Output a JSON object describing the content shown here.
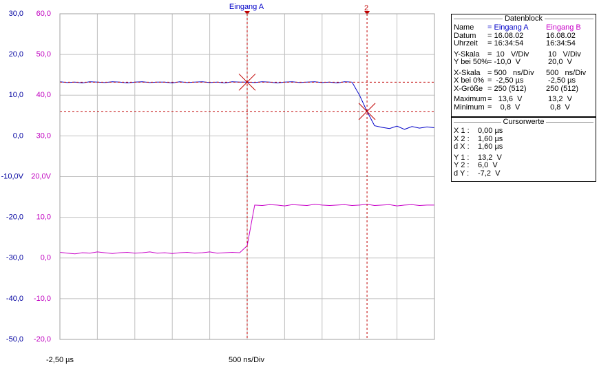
{
  "chart_data": {
    "type": "line",
    "title": "Eingang A",
    "cursor2_label": "2",
    "x_start_label": "-2,50 µs",
    "x_scale_label": "500 ns/Div",
    "xlim": [
      -2.5,
      2.5
    ],
    "xticks": [
      -2.5,
      -2,
      -1.5,
      -1,
      -0.5,
      0,
      0.5,
      1,
      1.5,
      2,
      2.5
    ],
    "x": [
      -2.5,
      -2.4,
      -2.3,
      -2.2,
      -2.1,
      -2.0,
      -1.9,
      -1.8,
      -1.7,
      -1.6,
      -1.5,
      -1.4,
      -1.3,
      -1.2,
      -1.1,
      -1.0,
      -0.9,
      -0.8,
      -0.7,
      -0.6,
      -0.5,
      -0.4,
      -0.3,
      -0.2,
      -0.1,
      0.0,
      0.1,
      0.2,
      0.3,
      0.4,
      0.5,
      0.6,
      0.7,
      0.8,
      0.9,
      1.0,
      1.1,
      1.2,
      1.3,
      1.4,
      1.5,
      1.6,
      1.7,
      1.8,
      1.9,
      2.0,
      2.1,
      2.2,
      2.3,
      2.4,
      2.5
    ],
    "ylim": [
      -50,
      30
    ],
    "yticks": [
      {
        "value": 30,
        "label": "30,0"
      },
      {
        "value": 20,
        "label": "20,0"
      },
      {
        "value": 10,
        "label": "10,0"
      },
      {
        "value": 0,
        "label": "0,0"
      },
      {
        "value": -10,
        "label": "-10,0V"
      },
      {
        "value": -20,
        "label": "-20,0"
      },
      {
        "value": -30,
        "label": "-30,0"
      },
      {
        "value": -40,
        "label": "-40,0"
      },
      {
        "value": -50,
        "label": "-50,0"
      }
    ],
    "y2lim": [
      -20,
      60
    ],
    "y2ticks": [
      {
        "value": 60,
        "label": "60,0"
      },
      {
        "value": 50,
        "label": "50,0"
      },
      {
        "value": 40,
        "label": "40,0"
      },
      {
        "value": 30,
        "label": "30,0"
      },
      {
        "value": 20,
        "label": "20,0V"
      },
      {
        "value": 10,
        "label": "10,0"
      },
      {
        "value": 0,
        "label": "0,0"
      },
      {
        "value": -10,
        "label": "-10,0"
      },
      {
        "value": -20,
        "label": "-20,0"
      }
    ],
    "series": [
      {
        "name": "Eingang A",
        "color": "#0000c8",
        "values": [
          13.3,
          13.1,
          13.2,
          13.0,
          13.3,
          13.2,
          13.1,
          13.3,
          13.2,
          13.0,
          13.2,
          13.3,
          13.1,
          13.2,
          13.2,
          13.0,
          13.3,
          13.1,
          13.2,
          13.3,
          13.1,
          13.2,
          13.0,
          13.3,
          13.2,
          13.2,
          13.1,
          13.3,
          13.2,
          13.0,
          13.2,
          13.3,
          13.1,
          13.2,
          13.3,
          13.1,
          13.2,
          13.0,
          13.3,
          13.2,
          10.0,
          6.0,
          2.5,
          2.1,
          1.8,
          2.4,
          1.6,
          2.3,
          1.9,
          2.2,
          2.0
        ]
      },
      {
        "name": "Eingang B",
        "color": "#c800c8",
        "axis": "y2",
        "values": [
          1.4,
          1.2,
          1.0,
          1.3,
          1.2,
          1.5,
          1.3,
          1.1,
          1.3,
          1.4,
          1.2,
          1.3,
          1.5,
          1.2,
          1.3,
          1.1,
          1.3,
          1.4,
          1.2,
          1.3,
          1.5,
          1.2,
          1.3,
          1.4,
          1.3,
          3.0,
          13.0,
          12.9,
          13.1,
          13.0,
          12.8,
          13.1,
          13.0,
          12.9,
          13.2,
          13.0,
          12.9,
          13.0,
          13.1,
          12.9,
          13.0,
          13.2,
          12.9,
          13.0,
          13.1,
          12.8,
          13.0,
          13.1,
          12.9,
          13.0,
          13.0
        ]
      }
    ]
  },
  "datenblock": {
    "title": "Datenblock",
    "rows": [
      [
        "Name",
        "= Eingang A",
        "Eingang B"
      ],
      [
        "Datum",
        "= 16.08.02",
        "16.08.02"
      ],
      [
        "Uhrzeit",
        "= 16:34:54",
        "16:34:54"
      ],
      [
        "Y-Skala",
        "=  10   V/Div",
        " 10   V/Div"
      ],
      [
        "Y bei 50%",
        "= -10,0  V",
        " 20,0  V"
      ],
      [
        "X-Skala",
        "= 500   ns/Div",
        "500   ns/Div"
      ],
      [
        "X bei 0%",
        "=  -2,50 µs",
        " -2,50 µs"
      ],
      [
        "X-Größe",
        "= 250 (512)",
        "250 (512)"
      ],
      [
        "Maximum",
        "=   13,6  V",
        " 13,2  V"
      ],
      [
        "Minimum",
        "=    0,8  V",
        "  0,8  V"
      ]
    ]
  },
  "cursorwerte": {
    "title": "Cursorwerte",
    "rows": [
      {
        "label": "X 1 :",
        "text": "0,00 µs",
        "value": 0
      },
      {
        "label": "X 2 :",
        "text": "1,60 µs",
        "value": 1.6
      },
      {
        "label": "d X :",
        "text": "1,60 µs"
      },
      {
        "label": "Y 1 :",
        "text": "13,2  V",
        "value": 13.2
      },
      {
        "label": "Y 2 :",
        "text": "6,0  V",
        "value": 6.0
      },
      {
        "label": "d Y :",
        "text": "-7,2  V"
      }
    ]
  }
}
